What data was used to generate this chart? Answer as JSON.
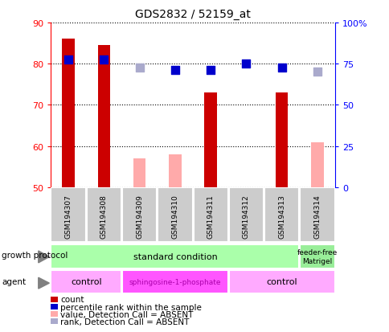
{
  "title": "GDS2832 / 52159_at",
  "samples": [
    "GSM194307",
    "GSM194308",
    "GSM194309",
    "GSM194310",
    "GSM194311",
    "GSM194312",
    "GSM194313",
    "GSM194314"
  ],
  "count_values": [
    86.0,
    84.5,
    null,
    null,
    73.0,
    null,
    73.0,
    null
  ],
  "count_absent_values": [
    null,
    null,
    57.0,
    58.0,
    null,
    null,
    null,
    61.0
  ],
  "rank_values": [
    81.0,
    81.0,
    null,
    78.5,
    78.5,
    80.0,
    79.0,
    null
  ],
  "rank_absent_values": [
    null,
    null,
    79.0,
    null,
    null,
    null,
    null,
    78.0
  ],
  "ylim": [
    50,
    90
  ],
  "y2lim": [
    0,
    100
  ],
  "yticks": [
    50,
    60,
    70,
    80,
    90
  ],
  "y2ticks": [
    0,
    25,
    50,
    75,
    100
  ],
  "y2tick_labels": [
    "0",
    "25",
    "50",
    "75",
    "100%"
  ],
  "bar_color_count": "#cc0000",
  "bar_color_absent": "#ffaaaa",
  "dot_color_rank": "#0000cc",
  "dot_color_rank_absent": "#aaaacc",
  "background_sample": "#cccccc",
  "legend_items": [
    {
      "label": "count",
      "color": "#cc0000"
    },
    {
      "label": "percentile rank within the sample",
      "color": "#0000cc"
    },
    {
      "label": "value, Detection Call = ABSENT",
      "color": "#ffaaaa"
    },
    {
      "label": "rank, Detection Call = ABSENT",
      "color": "#aaaacc"
    }
  ],
  "bar_width": 0.35
}
